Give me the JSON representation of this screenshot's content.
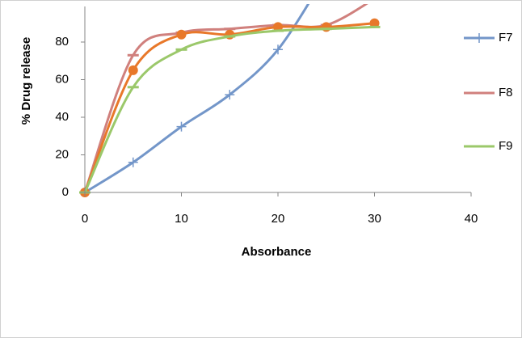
{
  "chart_data": {
    "type": "line",
    "x_label": "Absorbance",
    "y_label": "% Drug release",
    "x": [
      0,
      5,
      10,
      15,
      20,
      25,
      30
    ],
    "series": [
      {
        "name": "F7",
        "color": "#7396c9",
        "marker": "plus",
        "values": [
          0,
          16,
          35,
          52,
          76,
          116,
          null
        ]
      },
      {
        "name": "F8",
        "color": "#d0807d",
        "marker": "dash",
        "values": [
          0,
          73,
          85,
          87,
          89,
          89,
          103
        ]
      },
      {
        "color": "#e8782a",
        "marker": "circle",
        "values": [
          0,
          65,
          84,
          84,
          88,
          88,
          90
        ]
      },
      {
        "name": "F9",
        "color": "#9bc86a",
        "marker": "dash",
        "values": [
          0,
          56,
          76,
          83,
          86,
          87,
          88
        ]
      }
    ],
    "xlim": [
      0,
      40
    ],
    "xticks": [
      0,
      10,
      20,
      30,
      40
    ],
    "ylim": [
      0,
      100
    ],
    "yticks": [
      0,
      20,
      40,
      60,
      80
    ],
    "grid": false,
    "legend": "right"
  }
}
